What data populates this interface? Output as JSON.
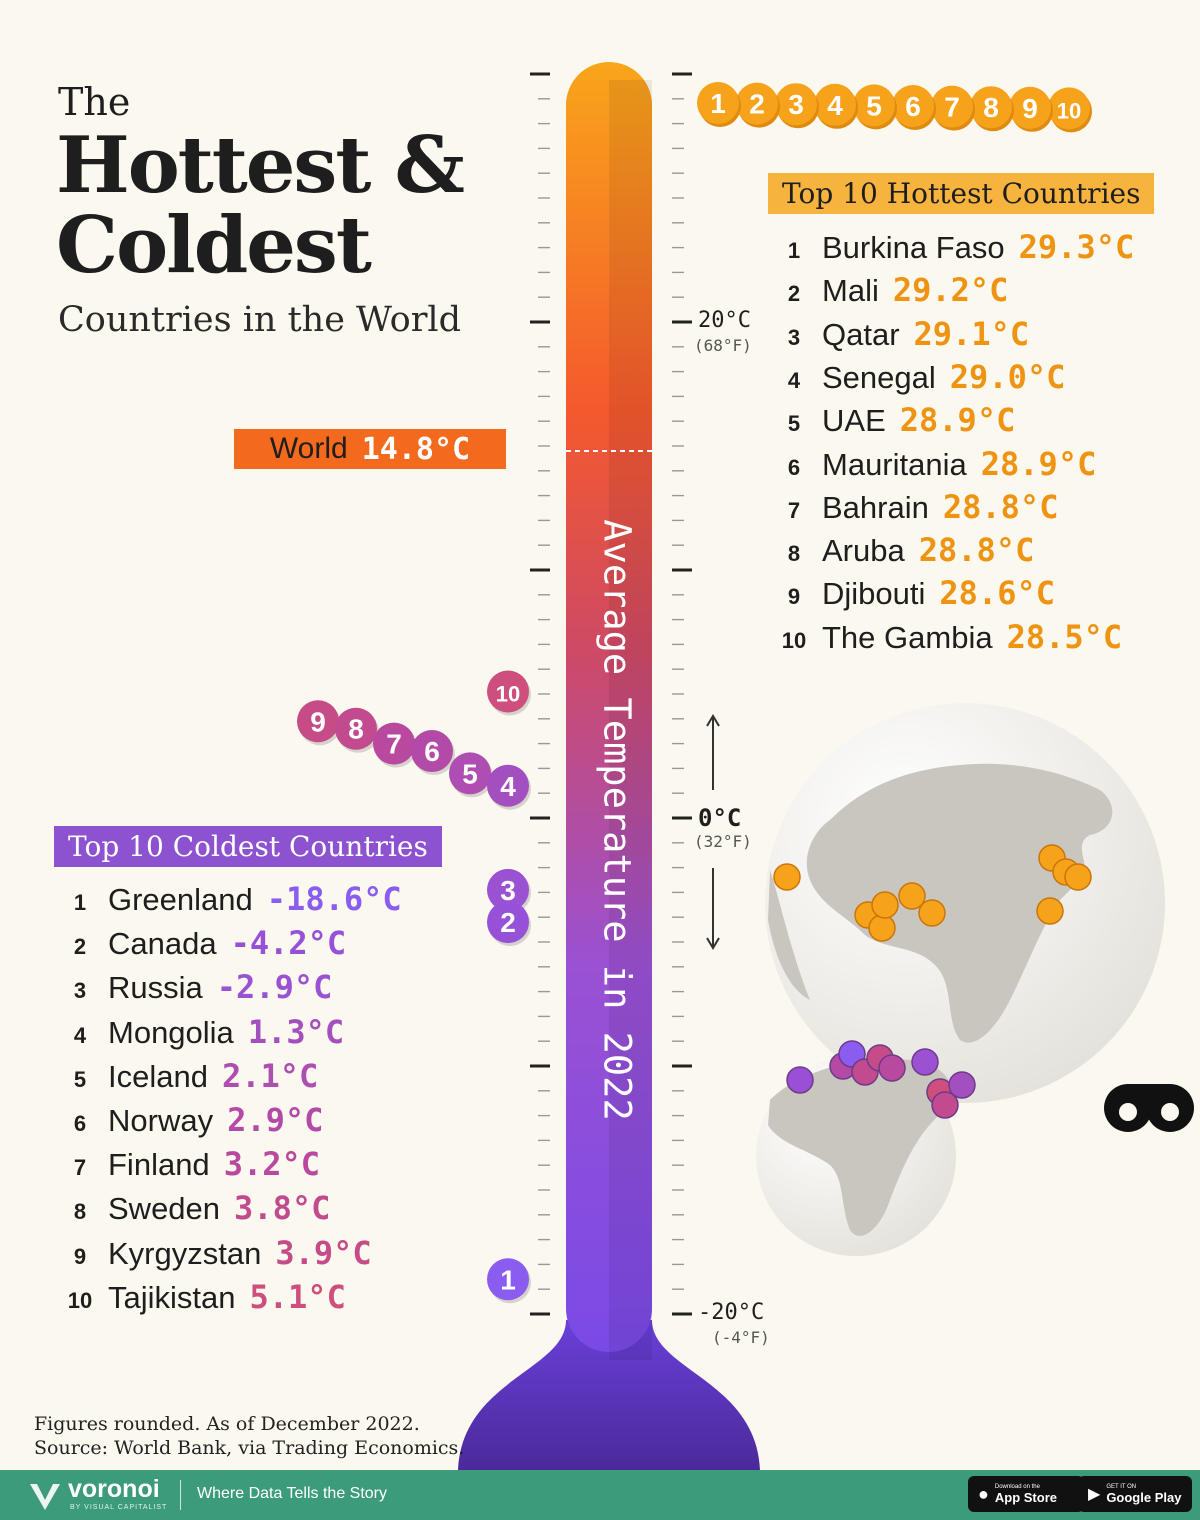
{
  "title": {
    "line1": "The",
    "line2": "Hottest &",
    "line3": "Coldest",
    "subtitle": "Countries in the World"
  },
  "world": {
    "label": "World",
    "value": "14.8°C",
    "temp": 14.8
  },
  "axis": {
    "title": "Average Temperature in 2022",
    "ticks": [
      {
        "c": "20°C",
        "f": "(68°F)",
        "value": 20
      },
      {
        "c": "0°C",
        "f": "(32°F)",
        "value": 0
      },
      {
        "c": "-20°C",
        "f": "(-4°F)",
        "value": -20
      }
    ],
    "ylim": [
      -20,
      30
    ]
  },
  "chart_data": {
    "type": "scatter",
    "title": "The Hottest & Coldest Countries in the World",
    "ylabel": "Average Temperature in 2022",
    "ylim": [
      -20,
      30
    ],
    "hottest": {
      "heading": "Top 10 Hottest Countries",
      "items": [
        {
          "rank": "1",
          "country": "Burkina Faso",
          "value": 29.3,
          "label": "29.3°C"
        },
        {
          "rank": "2",
          "country": "Mali",
          "value": 29.2,
          "label": "29.2°C"
        },
        {
          "rank": "3",
          "country": "Qatar",
          "value": 29.1,
          "label": "29.1°C"
        },
        {
          "rank": "4",
          "country": "Senegal",
          "value": 29.0,
          "label": "29.0°C"
        },
        {
          "rank": "5",
          "country": "UAE",
          "value": 28.9,
          "label": "28.9°C"
        },
        {
          "rank": "6",
          "country": "Mauritania",
          "value": 28.9,
          "label": "28.9°C"
        },
        {
          "rank": "7",
          "country": "Bahrain",
          "value": 28.8,
          "label": "28.8°C"
        },
        {
          "rank": "8",
          "country": "Aruba",
          "value": 28.8,
          "label": "28.8°C"
        },
        {
          "rank": "9",
          "country": "Djibouti",
          "value": 28.6,
          "label": "28.6°C"
        },
        {
          "rank": "10",
          "country": "The Gambia",
          "value": 28.5,
          "label": "28.5°C"
        }
      ]
    },
    "coldest": {
      "heading": "Top 10 Coldest Countries",
      "items": [
        {
          "rank": "1",
          "country": "Greenland",
          "value": -18.6,
          "label": "-18.6°C",
          "color": "#8a5cf0"
        },
        {
          "rank": "2",
          "country": "Canada",
          "value": -4.2,
          "label": "-4.2°C",
          "color": "#9651d8"
        },
        {
          "rank": "3",
          "country": "Russia",
          "value": -2.9,
          "label": "-2.9°C",
          "color": "#9a52d2"
        },
        {
          "rank": "4",
          "country": "Mongolia",
          "value": 1.3,
          "label": "1.3°C",
          "color": "#a44fbf"
        },
        {
          "rank": "5",
          "country": "Iceland",
          "value": 2.1,
          "label": "2.1°C",
          "color": "#ae4db2"
        },
        {
          "rank": "6",
          "country": "Norway",
          "value": 2.9,
          "label": "2.9°C",
          "color": "#b34aa8"
        },
        {
          "rank": "7",
          "country": "Finland",
          "value": 3.2,
          "label": "3.2°C",
          "color": "#b9489f"
        },
        {
          "rank": "8",
          "country": "Sweden",
          "value": 3.8,
          "label": "3.8°C",
          "color": "#c24a8e"
        },
        {
          "rank": "9",
          "country": "Kyrgyzstan",
          "value": 3.9,
          "label": "3.9°C",
          "color": "#c64c88"
        },
        {
          "rank": "10",
          "country": "Tajikistan",
          "value": 5.1,
          "label": "5.1°C",
          "color": "#ce4f7e"
        }
      ]
    }
  },
  "colors": {
    "hot": "#f7a21b",
    "hot_text": "#ef9412",
    "world": "#f36a1e",
    "cold_top": "#cc4f7c",
    "cold_bottom": "#8a5cf0",
    "footer": "#3c9b7a"
  },
  "footnote": {
    "line1": "Figures rounded. As of December 2022.",
    "line2": "Source: World Bank, via Trading Economics."
  },
  "footer": {
    "brand": "voronoi",
    "brand_sub": "BY VISUAL CAPITALIST",
    "tagline": "Where Data Tells the Story",
    "app_store_small": "Download on the",
    "app_store": "App Store",
    "google_small": "GET IT ON",
    "google": "Google Play"
  },
  "icons": [
    "globe-map-icon",
    "binoculars-logo-icon",
    "apple-icon",
    "google-play-icon",
    "voronoi-logo-icon"
  ]
}
